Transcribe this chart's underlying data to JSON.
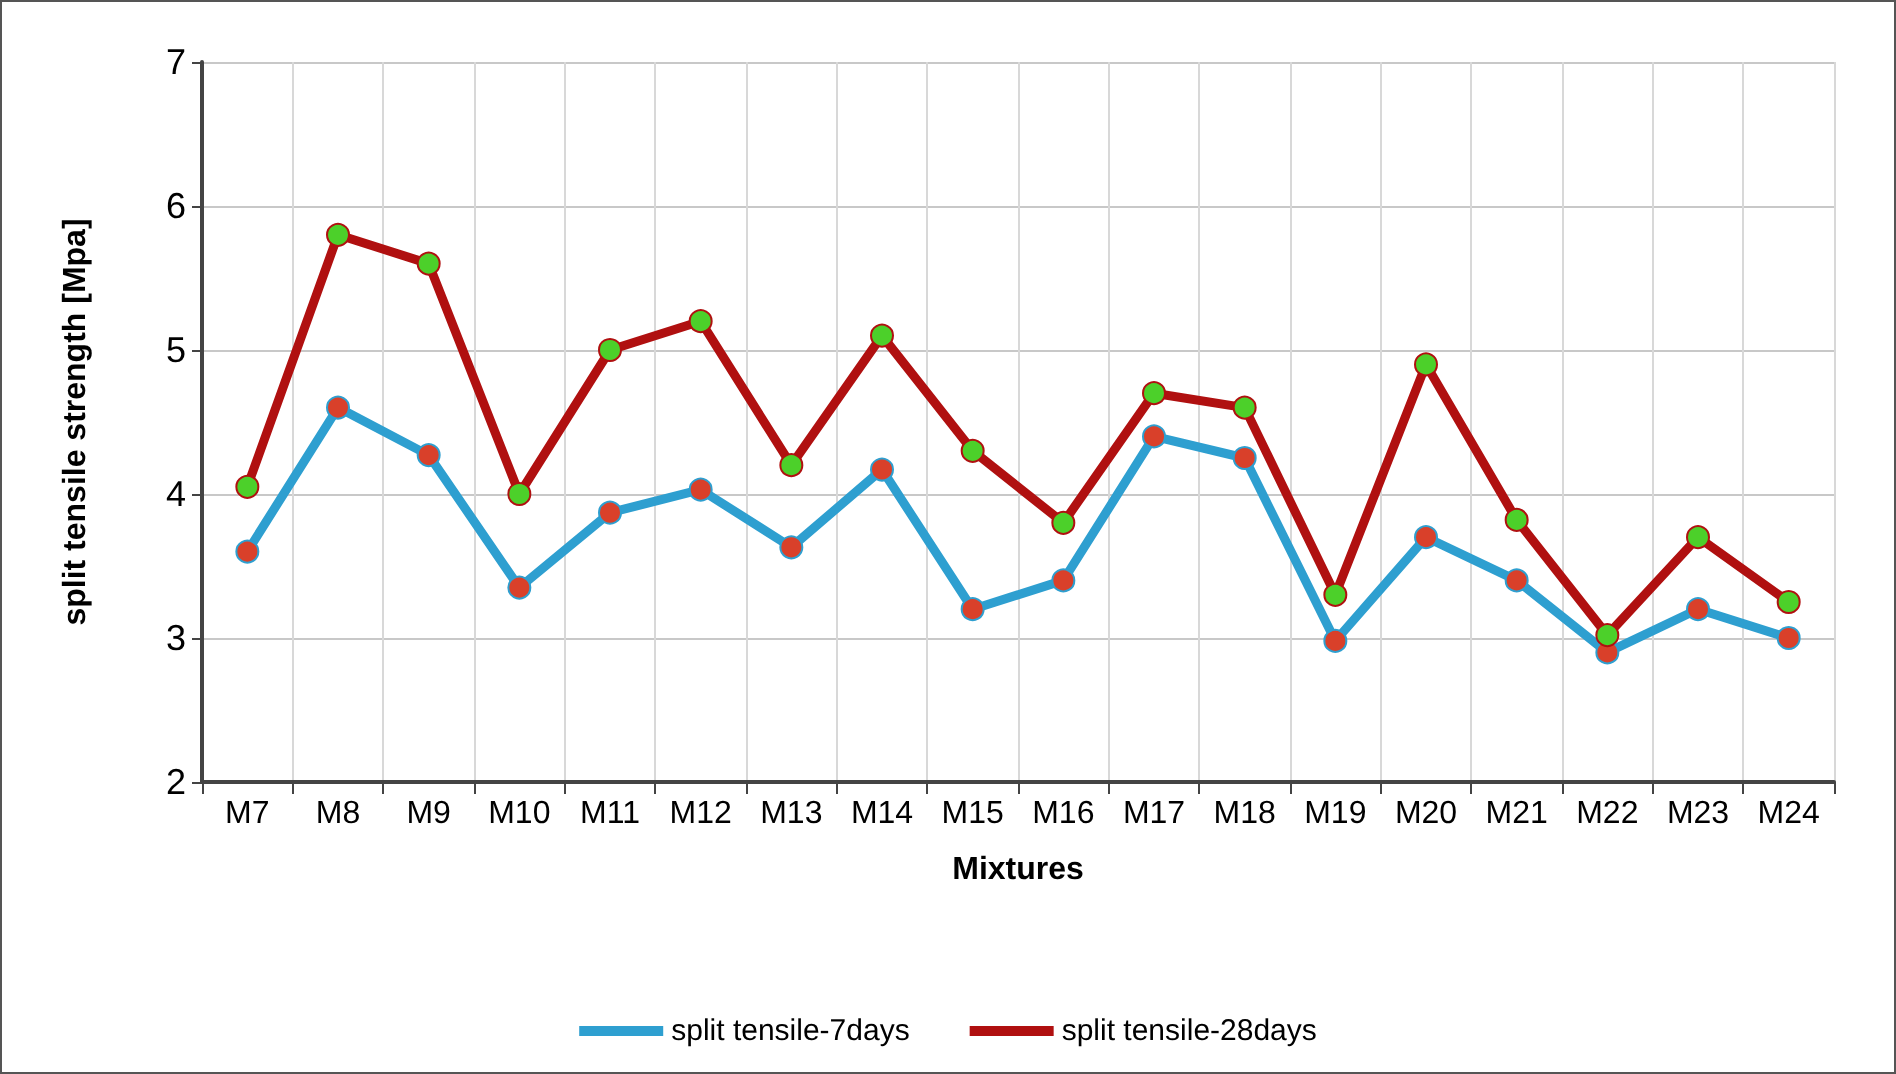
{
  "chart_data": {
    "type": "line",
    "xlabel": "Mixtures",
    "ylabel": "split tensile strength [Mpa]",
    "categories": [
      "M7",
      "M8",
      "M9",
      "M10",
      "M11",
      "M12",
      "M13",
      "M14",
      "M15",
      "M16",
      "M17",
      "M18",
      "M19",
      "M20",
      "M21",
      "M22",
      "M23",
      "M24"
    ],
    "series": [
      {
        "name": "split tensile-7days",
        "color": "#2e9fd0",
        "colors": [
          "#d9402a",
          "#d9402a",
          "#d9402a",
          "#d9402a",
          "#d9402a",
          "#d9402a",
          "#d9402a",
          "#d9402a",
          "#d9402a",
          "#d9402a",
          "#d9402a",
          "#d9402a",
          "#d9402a",
          "#d9402a",
          "#d9402a",
          "#d9402a",
          "#d9402a",
          "#d9402a"
        ],
        "values": [
          3.6,
          4.6,
          4.27,
          3.35,
          3.87,
          4.03,
          3.63,
          4.17,
          3.2,
          3.4,
          4.4,
          4.25,
          2.98,
          3.7,
          3.4,
          2.9,
          3.2,
          3.0
        ]
      },
      {
        "name": "split tensile-28days",
        "color": "#b01010",
        "colors": [
          "#4cd02a",
          "#4cd02a",
          "#4cd02a",
          "#4cd02a",
          "#4cd02a",
          "#4cd02a",
          "#4cd02a",
          "#4cd02a",
          "#4cd02a",
          "#4cd02a",
          "#4cd02a",
          "#4cd02a",
          "#4cd02a",
          "#4cd02a",
          "#4cd02a",
          "#4cd02a",
          "#4cd02a",
          "#4cd02a"
        ],
        "values": [
          4.05,
          5.8,
          5.6,
          4.0,
          5.0,
          5.2,
          4.2,
          5.1,
          4.3,
          3.8,
          4.7,
          4.6,
          3.3,
          4.9,
          3.82,
          3.02,
          3.7,
          3.25
        ]
      }
    ],
    "ylim": [
      2,
      7
    ],
    "yticks": [
      2,
      3,
      4,
      5,
      6,
      7
    ],
    "grid": true,
    "legend": "bottom",
    "marker": "circle",
    "line_style": "solid"
  }
}
